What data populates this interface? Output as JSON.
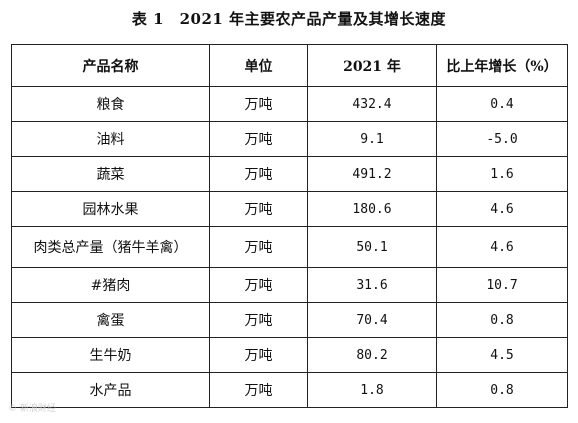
{
  "document": {
    "title": "表 1　2021 年主要农产品产量及其增长速度"
  },
  "table": {
    "headers": [
      "产品名称",
      "单位",
      "2021 年",
      "比上年增长（%）"
    ],
    "rows": [
      {
        "name": "粮食",
        "unit": "万吨",
        "value": "432.4",
        "growth": "0.4"
      },
      {
        "name": "油料",
        "unit": "万吨",
        "value": "9.1",
        "growth": "-5.0"
      },
      {
        "name": "蔬菜",
        "unit": "万吨",
        "value": "491.2",
        "growth": "1.6"
      },
      {
        "name": "园林水果",
        "unit": "万吨",
        "value": "180.6",
        "growth": "4.6"
      },
      {
        "name": "肉类总产量（猪牛羊禽）",
        "unit": "万吨",
        "value": "50.1",
        "growth": "4.6"
      },
      {
        "name": "#猪肉",
        "unit": "万吨",
        "value": "31.6",
        "growth": "10.7"
      },
      {
        "name": "禽蛋",
        "unit": "万吨",
        "value": "70.4",
        "growth": "0.8"
      },
      {
        "name": "生牛奶",
        "unit": "万吨",
        "value": "80.2",
        "growth": "4.5"
      },
      {
        "name": "水产品",
        "unit": "万吨",
        "value": "1.8",
        "growth": "0.8"
      }
    ]
  },
  "watermark": {
    "text": "© 新浪财经"
  }
}
